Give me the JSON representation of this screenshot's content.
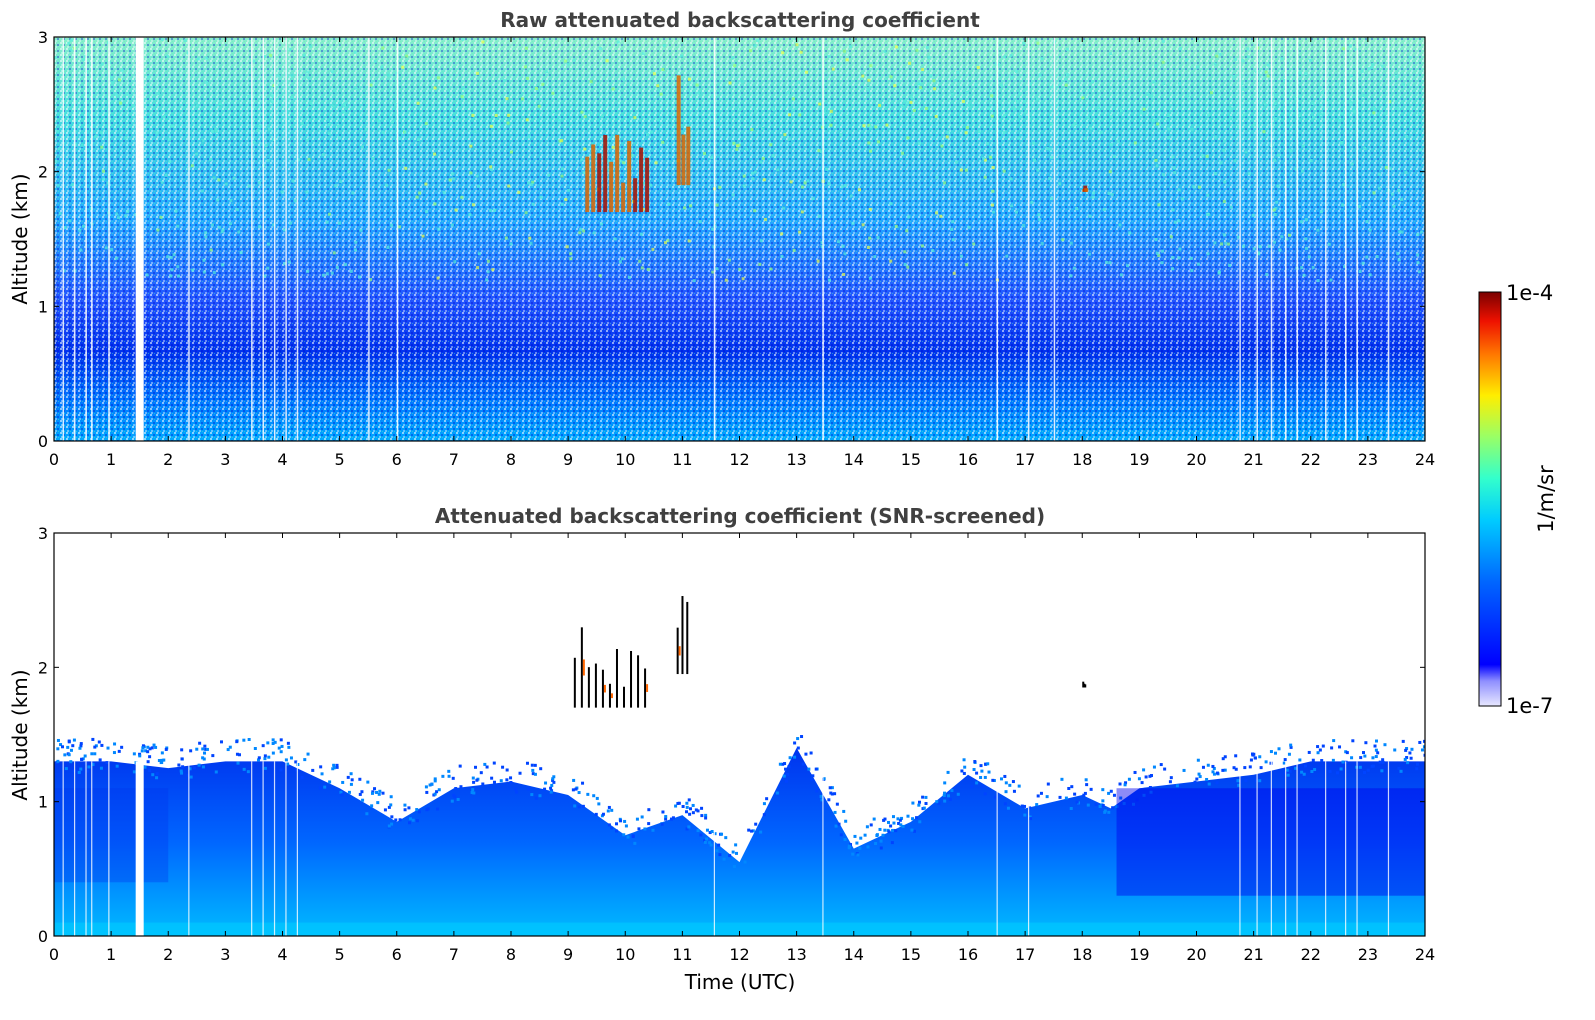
{
  "chart_data": [
    {
      "type": "heatmap",
      "title": "Raw attenuated backscattering coefficient",
      "xlabel": "",
      "ylabel": "Altitude (km)",
      "xlim": [
        0,
        24
      ],
      "ylim": [
        0,
        3
      ],
      "xticks": [
        "0",
        "1",
        "2",
        "3",
        "4",
        "5",
        "6",
        "7",
        "8",
        "9",
        "10",
        "11",
        "12",
        "13",
        "14",
        "15",
        "16",
        "17",
        "18",
        "19",
        "20",
        "21",
        "22",
        "23",
        "24"
      ],
      "yticks": [
        "0",
        "1",
        "2",
        "3"
      ],
      "colorscale": "jet",
      "zrange": [
        1e-07,
        0.0001
      ],
      "features": [
        {
          "name": "boundary layer",
          "altitude_km": [
            0,
            1.0
          ]
        },
        {
          "name": "cloud",
          "time_utc": [
            9.3,
            10.4
          ],
          "altitude_km": [
            1.7,
            2.3
          ]
        },
        {
          "name": "cloud",
          "time_utc": [
            10.9,
            11.1
          ],
          "altitude_km": [
            1.9,
            2.9
          ]
        },
        {
          "name": "cloud",
          "time_utc": [
            18.0,
            18.0
          ],
          "altitude_km": [
            1.85,
            1.9
          ]
        }
      ],
      "missing_data_time_utc": [
        1.5
      ]
    },
    {
      "type": "heatmap",
      "title": "Attenuated backscattering coefficient (SNR-screened)",
      "xlabel": "Time (UTC)",
      "ylabel": "Altitude (km)",
      "xlim": [
        0,
        24
      ],
      "ylim": [
        0,
        3
      ],
      "xticks": [
        "0",
        "1",
        "2",
        "3",
        "4",
        "5",
        "6",
        "7",
        "8",
        "9",
        "10",
        "11",
        "12",
        "13",
        "14",
        "15",
        "16",
        "17",
        "18",
        "19",
        "20",
        "21",
        "22",
        "23",
        "24"
      ],
      "yticks": [
        "0",
        "1",
        "2",
        "3"
      ],
      "colorscale": "jet",
      "zrange": [
        1e-07,
        0.0001
      ],
      "screened_top_km": [
        [
          0,
          1.3
        ],
        [
          1,
          1.3
        ],
        [
          2,
          1.25
        ],
        [
          3,
          1.3
        ],
        [
          4,
          1.3
        ],
        [
          5,
          1.1
        ],
        [
          6,
          0.85
        ],
        [
          7,
          1.1
        ],
        [
          8,
          1.15
        ],
        [
          9,
          1.05
        ],
        [
          10,
          0.75
        ],
        [
          11,
          0.9
        ],
        [
          12,
          0.55
        ],
        [
          13,
          1.4
        ],
        [
          14,
          0.65
        ],
        [
          15,
          0.85
        ],
        [
          16,
          1.2
        ],
        [
          17,
          0.95
        ],
        [
          18,
          1.05
        ],
        [
          18.5,
          0.95
        ],
        [
          19,
          1.1
        ],
        [
          20,
          1.15
        ],
        [
          21,
          1.2
        ],
        [
          22,
          1.3
        ],
        [
          23,
          1.3
        ],
        [
          24,
          1.3
        ]
      ],
      "features": [
        {
          "name": "cloud",
          "time_utc": [
            9.1,
            10.4
          ],
          "altitude_km": [
            1.7,
            2.3
          ]
        },
        {
          "name": "cloud",
          "time_utc": [
            10.9,
            11.1
          ],
          "altitude_km": [
            1.95,
            2.7
          ]
        },
        {
          "name": "cloud",
          "time_utc": [
            18.0,
            18.0
          ],
          "altitude_km": [
            1.85,
            1.9
          ]
        }
      ]
    }
  ],
  "colorbar": {
    "label": "1/m/sr",
    "max_label": "1e-4",
    "min_label": "1e-7",
    "range": [
      1e-07,
      0.0001
    ],
    "scale": "log",
    "colorscale": "jet"
  }
}
